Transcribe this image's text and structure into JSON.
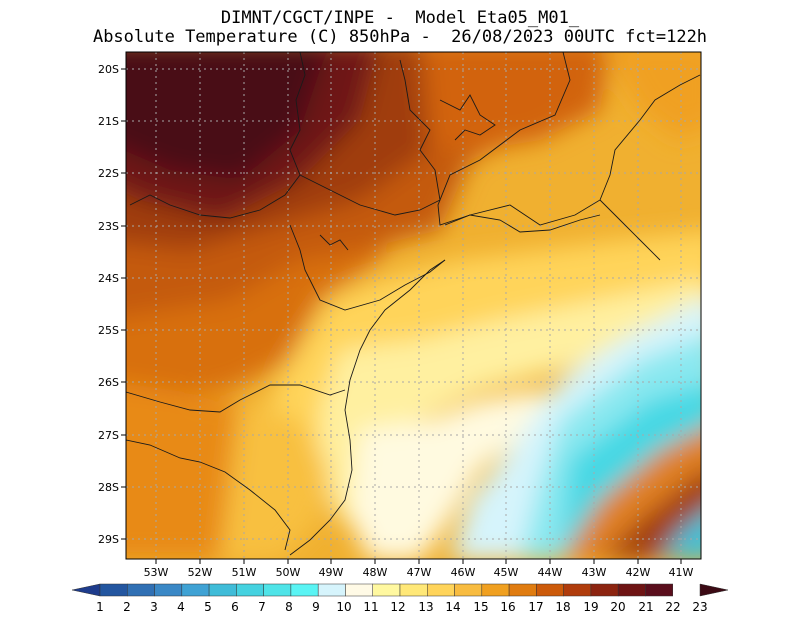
{
  "header": {
    "line1": "DIMNT/CGCT/INPE -  Model Eta05_M01_",
    "line2": "Absolute Temperature (C) 850hPa -  26/08/2023 00UTC fct=122h"
  },
  "map": {
    "lat_labels": [
      "20S",
      "21S",
      "22S",
      "23S",
      "24S",
      "25S",
      "26S",
      "27S",
      "28S",
      "29S"
    ],
    "lon_labels": [
      "53W",
      "52W",
      "51W",
      "50W",
      "49W",
      "48W",
      "47W",
      "46W",
      "45W",
      "44W",
      "43W",
      "42W",
      "41W"
    ]
  },
  "colorbar": {
    "labels": [
      "1",
      "2",
      "3",
      "4",
      "5",
      "6",
      "7",
      "8",
      "9",
      "10",
      "11",
      "12",
      "13",
      "14",
      "15",
      "16",
      "17",
      "18",
      "19",
      "20",
      "21",
      "22",
      "23"
    ],
    "colors": [
      "#1e3c8c",
      "#2356a0",
      "#3070b4",
      "#3a88c6",
      "#3fa2d4",
      "#3fbcd8",
      "#45d2e0",
      "#4fe4e8",
      "#5af4f4",
      "#d6f4fc",
      "#fffae6",
      "#fff8a0",
      "#ffe878",
      "#ffd45a",
      "#f8bc40",
      "#f0a020",
      "#e07c10",
      "#cc5a0a",
      "#b03c0c",
      "#8c2410",
      "#6e1414",
      "#5a0e1c",
      "#3c0a14"
    ]
  }
}
